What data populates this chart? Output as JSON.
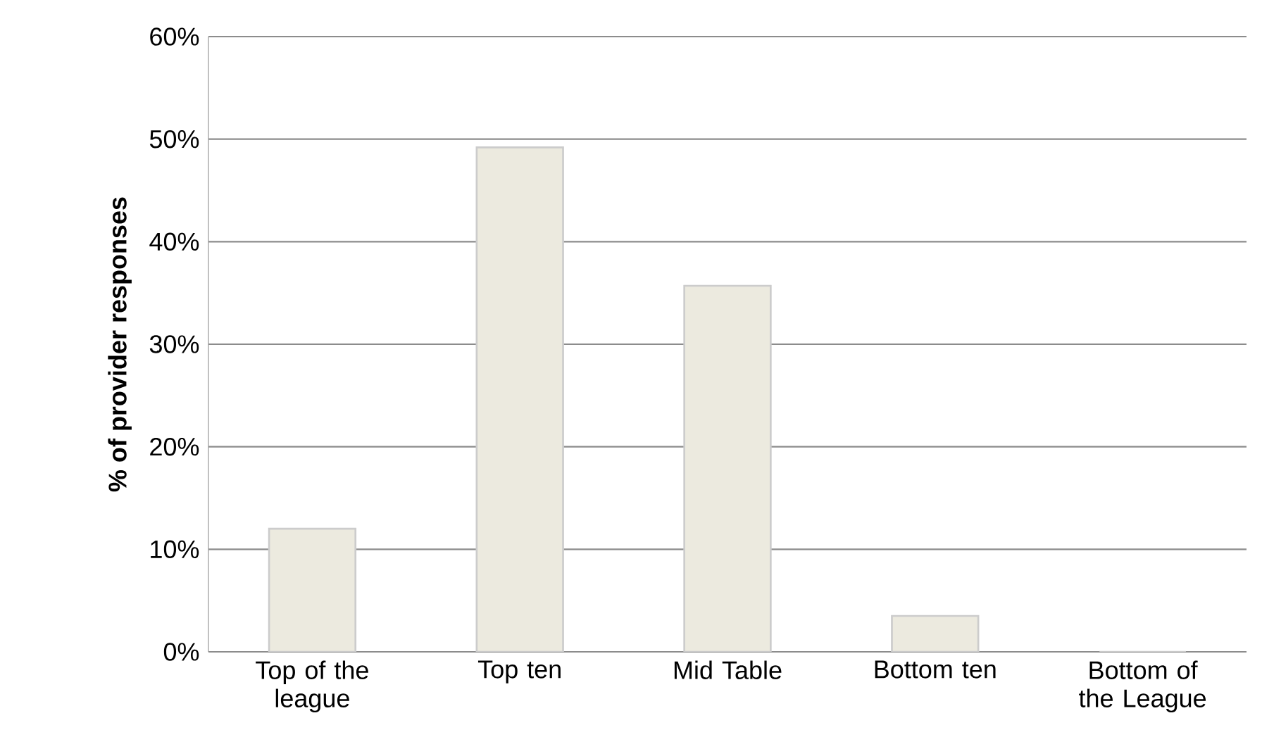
{
  "chart_data": {
    "type": "bar",
    "ylabel": "% of provider responses",
    "categories": [
      "Top of the league",
      "Top ten",
      "Mid Table",
      "Bottom ten",
      "Bottom of the League"
    ],
    "values": [
      12,
      49.2,
      35.7,
      3.5,
      0
    ],
    "color": "#eceadf",
    "ylim": [
      0,
      60
    ],
    "yticks": [
      {
        "value": 0,
        "label": "0%"
      },
      {
        "value": 10,
        "label": "10%"
      },
      {
        "value": 20,
        "label": "20%"
      },
      {
        "value": 30,
        "label": "30%"
      },
      {
        "value": 40,
        "label": "40%"
      },
      {
        "value": 50,
        "label": "50%"
      },
      {
        "value": 60,
        "label": "60%"
      }
    ],
    "grid": "y"
  }
}
